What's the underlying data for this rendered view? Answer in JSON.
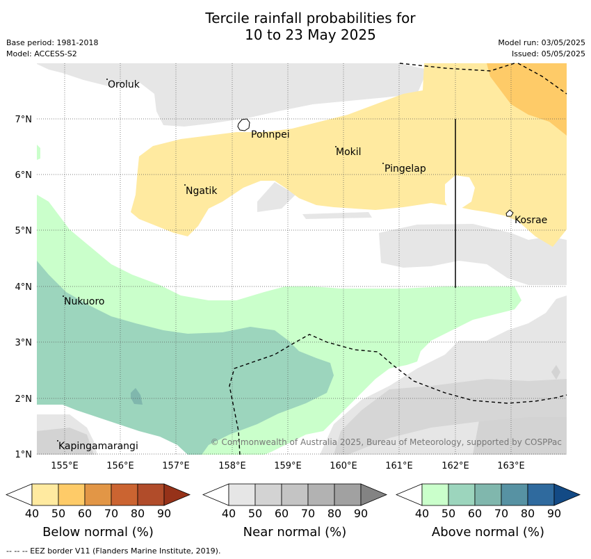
{
  "title_line1": "Tercile rainfall probabilities for",
  "title_line2": "10 to 23 May 2025",
  "meta": {
    "base_period": "Base period: 1981-2018",
    "model": "Model: ACCESS-S2",
    "model_run": "Model run: 03/05/2025",
    "issued": "Issued: 05/05/2025"
  },
  "map": {
    "lon_ticks": [
      "155°E",
      "156°E",
      "157°E",
      "158°E",
      "159°E",
      "160°E",
      "161°E",
      "162°E",
      "163°E"
    ],
    "lat_ticks": [
      "7°N",
      "6°N",
      "5°N",
      "4°N",
      "3°N",
      "2°N",
      "1°N"
    ],
    "places": {
      "oroluk": "Oroluk",
      "pohnpei": "Pohnpei",
      "mokil": "Mokil",
      "pingelap": "Pingelap",
      "ngatik": "Ngatik",
      "kosrae": "Kosrae",
      "nukuoro": "Nukuoro",
      "kapingamarangi": "Kapingamarangi"
    },
    "copyright": "© Commonwealth of Australia 2025, Bureau of Meteorology, supported by COSPPac"
  },
  "colorbars": {
    "ticks": [
      "40",
      "50",
      "60",
      "70",
      "80",
      "90"
    ],
    "below": {
      "title": "Below normal (%)",
      "colors": [
        "#ffffff",
        "#ffeaa0",
        "#fecb68",
        "#e29646",
        "#cb6431",
        "#b14c2a",
        "#963219"
      ]
    },
    "near": {
      "title": "Near normal (%)",
      "colors": [
        "#ffffff",
        "#e6e6e6",
        "#d3d3d3",
        "#c4c4c4",
        "#b2b2b2",
        "#a1a1a1",
        "#838383"
      ]
    },
    "above": {
      "title": "Above normal (%)",
      "colors": [
        "#ffffff",
        "#caffcb",
        "#9cd5bd",
        "#80b7ad",
        "#5792a3",
        "#2f6a9e",
        "#134a85"
      ]
    }
  },
  "footnote": "--  --  -- EEZ border V11 (Flanders Marine Institute, 2019)."
}
